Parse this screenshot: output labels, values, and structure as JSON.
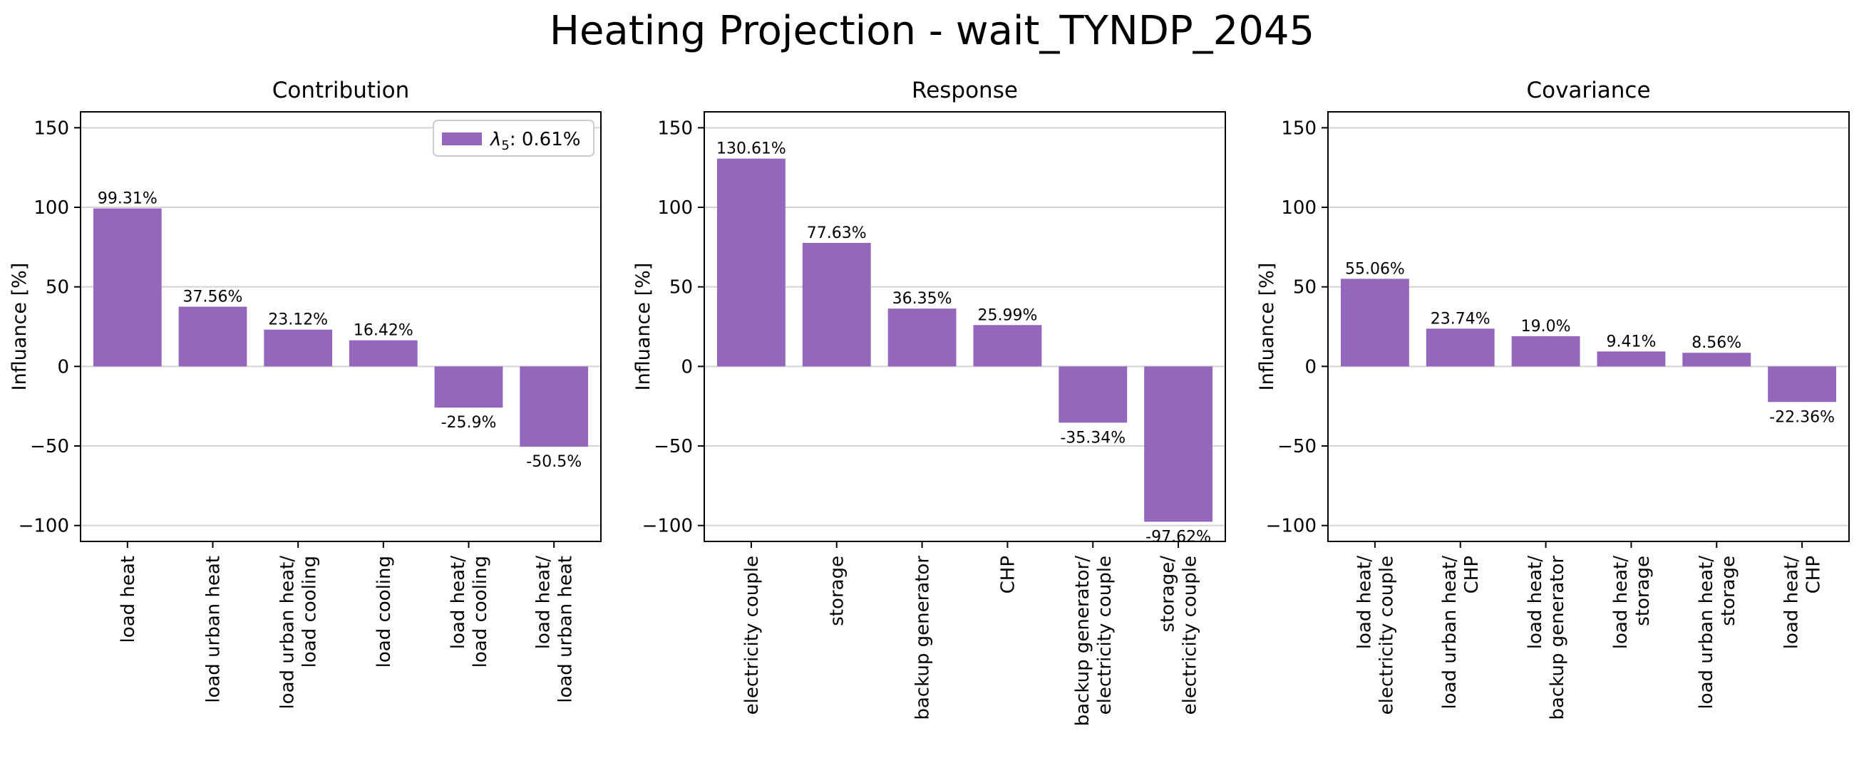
{
  "figure": {
    "title": "Heating Projection - wait_TYNDP_2045",
    "bar_color": "#9467bd",
    "grid_color": "#d3d3d3"
  },
  "chart_data": [
    {
      "type": "bar",
      "title": "Contribution",
      "xlabel": "",
      "ylabel": "Influance [%]",
      "ylim": [
        -110,
        160
      ],
      "yticks": [
        -100,
        -50,
        0,
        50,
        100,
        150
      ],
      "grid": "horizontal",
      "legend": {
        "placement": "upper-right",
        "entries": [
          {
            "symbol": "λ5",
            "label": ": 0.61%"
          }
        ]
      },
      "categories": [
        "load heat",
        "load urban heat",
        "load urban heat/\nload cooling",
        "load cooling",
        "load heat/\nload cooling",
        "load heat/\nload urban heat"
      ],
      "values": [
        99.31,
        37.56,
        23.12,
        16.42,
        -25.9,
        -50.5
      ],
      "value_labels": [
        "99.31%",
        "37.56%",
        "23.12%",
        "16.42%",
        "-25.9%",
        "-50.5%"
      ]
    },
    {
      "type": "bar",
      "title": "Response",
      "xlabel": "",
      "ylabel": "Influance [%]",
      "ylim": [
        -110,
        160
      ],
      "yticks": [
        -100,
        -50,
        0,
        50,
        100,
        150
      ],
      "grid": "horizontal",
      "categories": [
        "electricity couple",
        "storage",
        "backup generator",
        "CHP",
        "backup generator/\nelectricity couple",
        "storage/\nelectricity couple"
      ],
      "values": [
        130.61,
        77.63,
        36.35,
        25.99,
        -35.34,
        -97.62
      ],
      "value_labels": [
        "130.61%",
        "77.63%",
        "36.35%",
        "25.99%",
        "-35.34%",
        "-97.62%"
      ]
    },
    {
      "type": "bar",
      "title": "Covariance",
      "xlabel": "",
      "ylabel": "Influance [%]",
      "ylim": [
        -110,
        160
      ],
      "yticks": [
        -100,
        -50,
        0,
        50,
        100,
        150
      ],
      "grid": "horizontal",
      "categories": [
        "load heat/\nelectricity couple",
        "load urban heat/\nCHP",
        "load heat/\nbackup generator",
        "load heat/\nstorage",
        "load urban heat/\nstorage",
        "load heat/\nCHP"
      ],
      "values": [
        55.06,
        23.74,
        19.0,
        9.41,
        8.56,
        -22.36
      ],
      "value_labels": [
        "55.06%",
        "23.74%",
        "19.0%",
        "9.41%",
        "8.56%",
        "-22.36%"
      ]
    }
  ]
}
